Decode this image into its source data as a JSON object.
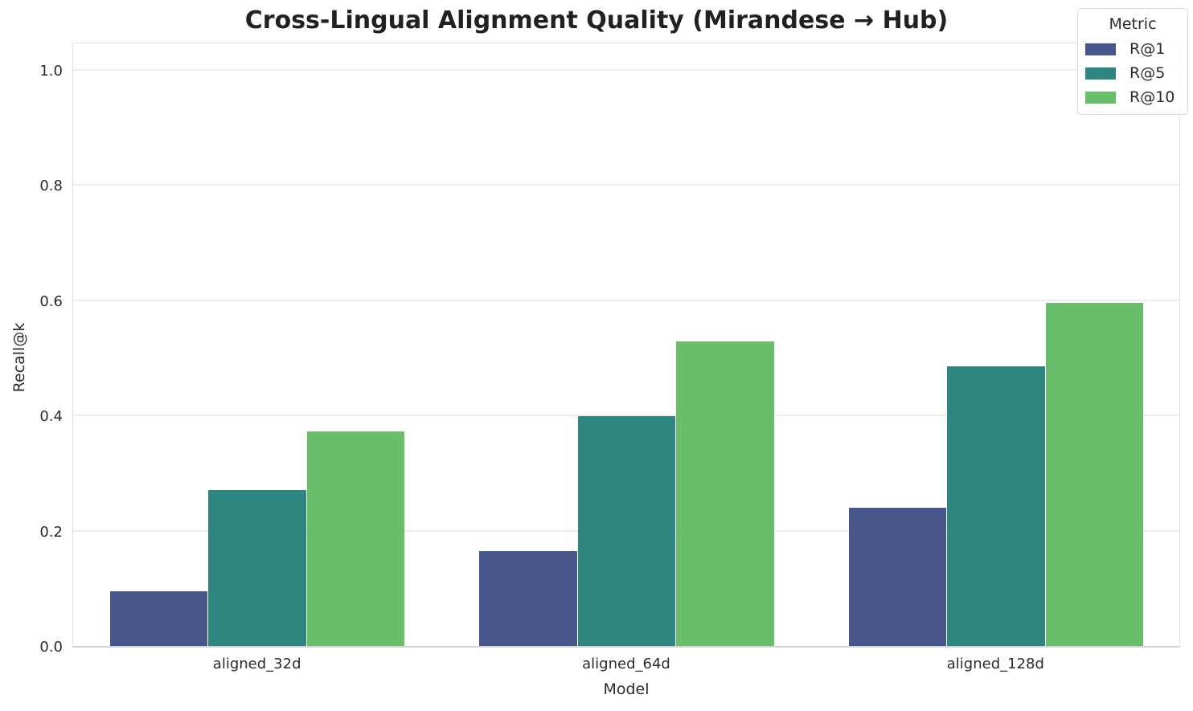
{
  "chart_data": {
    "type": "bar",
    "title": "Cross-Lingual Alignment Quality (Mirandese → Hub)",
    "xlabel": "Model",
    "ylabel": "Recall@k",
    "categories": [
      "aligned_32d",
      "aligned_64d",
      "aligned_128d"
    ],
    "series": [
      {
        "name": "R@1",
        "color": "#46568B",
        "values": [
          0.095,
          0.165,
          0.24
        ]
      },
      {
        "name": "R@5",
        "color": "#2D867F",
        "values": [
          0.27,
          0.399,
          0.485
        ]
      },
      {
        "name": "R@10",
        "color": "#69BE69",
        "values": [
          0.372,
          0.528,
          0.595
        ]
      }
    ],
    "ylim": [
      0,
      1.05
    ],
    "yticks": [
      0.0,
      0.2,
      0.4,
      0.6,
      0.8,
      1.0
    ],
    "grid": true,
    "legend": {
      "title": "Metric",
      "position": "upper right"
    },
    "group_width_fraction": 0.8
  }
}
